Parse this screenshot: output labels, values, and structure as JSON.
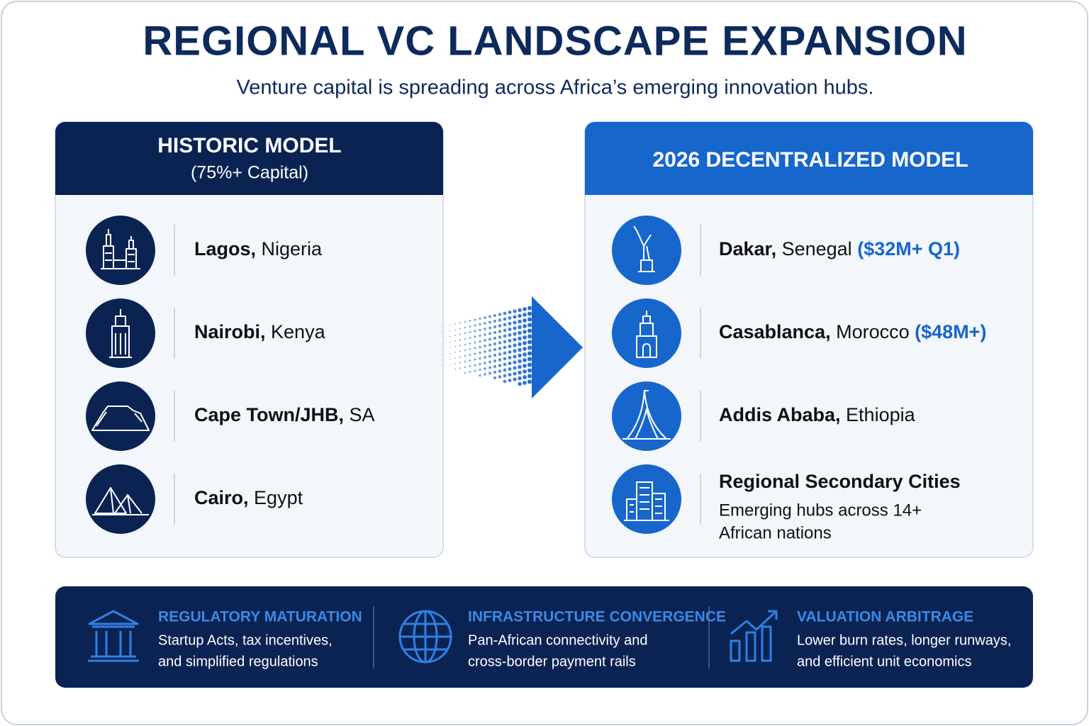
{
  "header": {
    "title": "REGIONAL VC LANDSCAPE EXPANSION",
    "subtitle": "Venture capital is spreading across Africa’s emerging innovation hubs."
  },
  "historic": {
    "title": "HISTORIC MODEL",
    "subtitle": "(75%+ Capital)",
    "cities": [
      {
        "name": "Lagos,",
        "region": "Nigeria"
      },
      {
        "name": "Nairobi,",
        "region": "Kenya"
      },
      {
        "name": "Cape Town/JHB,",
        "region": "SA"
      },
      {
        "name": "Cairo,",
        "region": "Egypt"
      }
    ]
  },
  "decentralized": {
    "title": "2026 DECENTRALIZED MODEL",
    "cities": [
      {
        "name": "Dakar,",
        "region": "Senegal",
        "note": "($32M+ Q1)"
      },
      {
        "name": "Casablanca,",
        "region": "Morocco",
        "note": "($48M+)"
      },
      {
        "name": "Addis Ababa,",
        "region": "Ethiopia"
      },
      {
        "name": "Regional Secondary Cities",
        "description": [
          "Emerging hubs across 14+",
          "African nations"
        ]
      }
    ]
  },
  "footer": {
    "items": [
      {
        "title": "REGULATORY MATURATION",
        "text": [
          "Startup Acts, tax incentives,",
          "and simplified regulations"
        ]
      },
      {
        "title": "INFRASTRUCTURE CONVERGENCE",
        "text": [
          "Pan-African connectivity and",
          "cross-border payment rails"
        ]
      },
      {
        "title": "VALUATION ARBITRAGE",
        "text": [
          "Lower burn rates, longer runways,",
          "and efficient unit economics"
        ]
      }
    ]
  }
}
